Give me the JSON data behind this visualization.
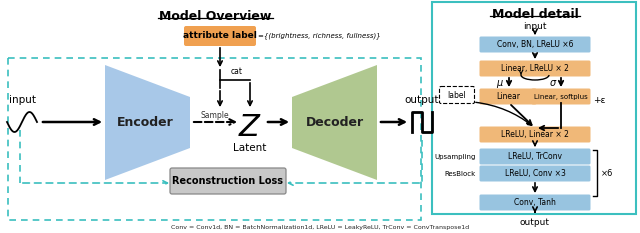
{
  "title_left": "Model Overview",
  "title_right": "Model detail",
  "right_border_color": "#3bbfbf",
  "left_border_color": "#3bbfbf",
  "encoder_color": "#a8c8e8",
  "decoder_color": "#b0c890",
  "attr_label_color": "#f0a050",
  "recon_loss_color": "#c8c8c8",
  "box_blue_color": "#98c4e0",
  "box_orange_color": "#f0b878",
  "footnote": "Conv = Conv1d, BN = BatchNormalization1d, LReLU = LeakyReLU, TrConv = ConvTranspose1d"
}
